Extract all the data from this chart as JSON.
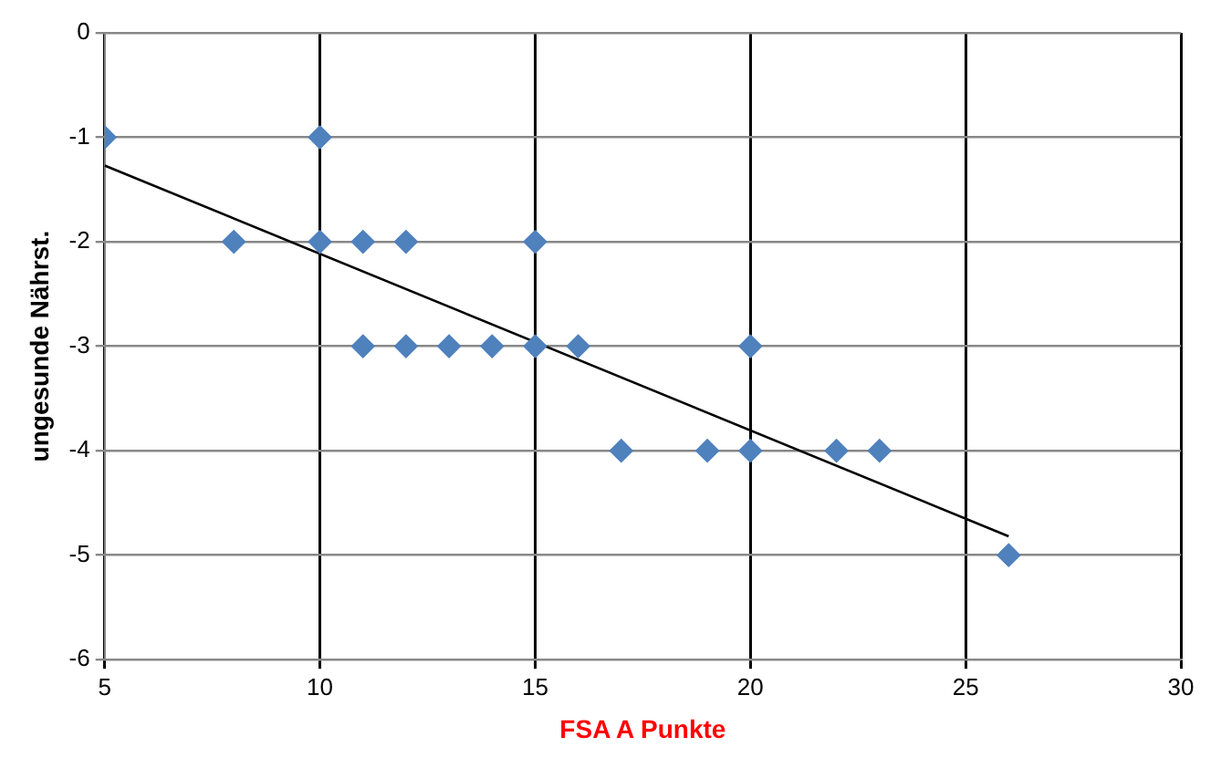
{
  "chart_data": {
    "type": "scatter",
    "xlabel": "FSA A Punkte",
    "ylabel": "ungesunde Nährst.",
    "xlim": [
      5,
      30
    ],
    "xticks": [
      5,
      10,
      15,
      20,
      25,
      30
    ],
    "ylim": [
      -6,
      0
    ],
    "yticks": [
      -6,
      -5,
      -4,
      -3,
      -2,
      -1,
      0
    ],
    "grid": true,
    "legend": false,
    "marker": "diamond",
    "series": [
      {
        "type": "scatter",
        "color": "#4f81bd",
        "x": [
          5,
          8,
          10,
          10,
          11,
          11,
          12,
          12,
          13,
          14,
          15,
          15,
          16,
          17,
          19,
          20,
          20,
          22,
          23,
          26
        ],
        "values": [
          -1,
          -2,
          -1,
          -2,
          -2,
          -3,
          -2,
          -3,
          -3,
          -3,
          -2,
          -3,
          -3,
          -4,
          -4,
          -3,
          -4,
          -4,
          -4,
          -5
        ]
      },
      {
        "type": "line",
        "color": "#000000",
        "marker": "none",
        "x": [
          5,
          26
        ],
        "values": [
          -1.27,
          -4.82
        ]
      }
    ]
  }
}
